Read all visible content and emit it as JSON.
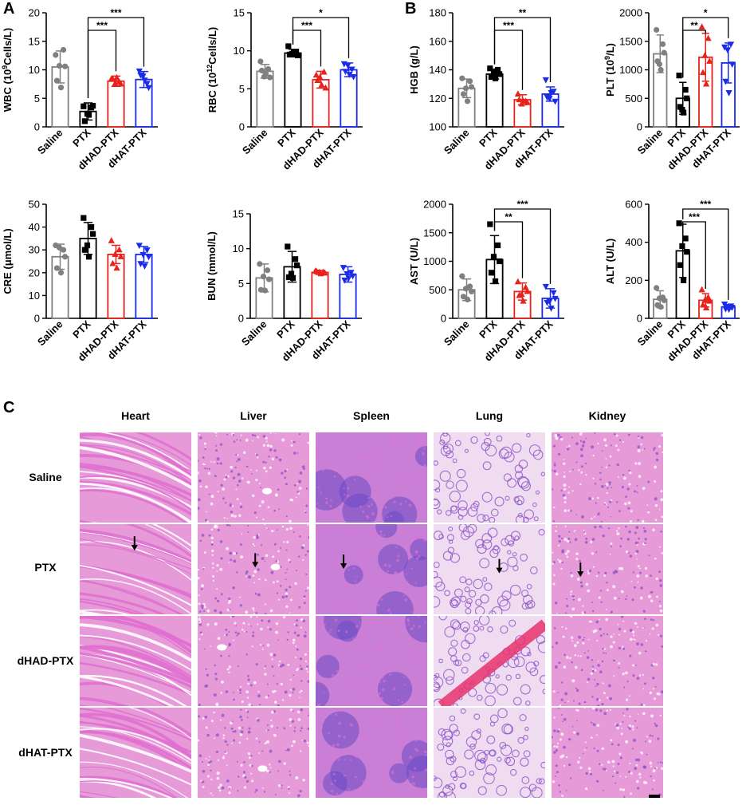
{
  "panel_letters": {
    "a": "A",
    "b": "B",
    "c": "C"
  },
  "colors": {
    "saline": "#808080",
    "ptx": "#000000",
    "dhad": "#e8231b",
    "dhat": "#1b2be8",
    "he_pink": "#e06fd0",
    "he_purple": "#8c52c8",
    "he_light": "#f3d6ef"
  },
  "chart_data": [
    {
      "id": "wbc",
      "type": "bar",
      "categories": [
        "Saline",
        "PTX",
        "dHAD-PTX",
        "dHAT-PTX"
      ],
      "values": [
        10.5,
        2.7,
        8.0,
        8.3
      ],
      "errors": [
        2.8,
        1.5,
        0.9,
        1.4
      ],
      "points": [
        [
          12.6,
          13.5,
          10.6,
          8.1,
          6.9,
          10.7
        ],
        [
          3.6,
          3.4,
          3.7,
          1.0,
          2.1,
          2.3
        ],
        [
          8.4,
          7.9,
          7.5,
          8.4,
          8.6,
          7.6
        ],
        [
          9.8,
          7.6,
          6.9,
          9.1,
          8.2,
          8.9
        ]
      ],
      "ylabel_main": "WBC (10",
      "ylabel_sup": "9",
      "ylabel_end": "Cells/L)",
      "ylim": [
        0,
        20
      ],
      "yticks": [
        "0",
        "5",
        "10",
        "15",
        "20"
      ],
      "brackets": [
        {
          "from": 1,
          "to": 2,
          "label": "***"
        },
        {
          "from": 1,
          "to": 3,
          "label": "***"
        }
      ]
    },
    {
      "id": "rbc",
      "type": "bar",
      "categories": [
        "Saline",
        "PTX",
        "dHAD-PTX",
        "dHAT-PTX"
      ],
      "values": [
        7.3,
        9.7,
        6.2,
        7.5
      ],
      "errors": [
        0.9,
        0.5,
        1.1,
        0.9
      ],
      "points": [
        [
          8.6,
          7.6,
          6.5,
          7.4,
          7.0,
          6.6
        ],
        [
          10.6,
          9.9,
          9.4,
          9.5,
          9.9,
          9.6
        ],
        [
          6.8,
          7.2,
          5.1,
          6.1,
          5.5,
          6.5
        ],
        [
          8.3,
          7.6,
          6.6,
          7.3,
          6.9,
          8.1
        ]
      ],
      "ylabel_main": "RBC (10",
      "ylabel_sup": "12",
      "ylabel_end": "Cells/L)",
      "ylim": [
        0,
        15
      ],
      "yticks": [
        "0",
        "5",
        "10",
        "15"
      ],
      "brackets": [
        {
          "from": 1,
          "to": 2,
          "label": "***"
        },
        {
          "from": 1,
          "to": 3,
          "label": "*"
        }
      ]
    },
    {
      "id": "hgb",
      "type": "bar",
      "categories": [
        "Saline",
        "PTX",
        "dHAD-PTX",
        "dHAT-PTX"
      ],
      "values": [
        127,
        137,
        119,
        123
      ],
      "errors": [
        6.5,
        3.5,
        3.5,
        5.0
      ],
      "points": [
        [
          134,
          132,
          128,
          123,
          118,
          127
        ],
        [
          141,
          140,
          137,
          135,
          134,
          138
        ],
        [
          123,
          118,
          117,
          119,
          118,
          116
        ],
        [
          133,
          125,
          118,
          121,
          124,
          120
        ]
      ],
      "ylabel_main": "HGB (g/L)",
      "ylabel_sup": "",
      "ylabel_end": "",
      "ylim": [
        100,
        180
      ],
      "yticks": [
        "100",
        "120",
        "140",
        "160",
        "180"
      ],
      "brackets": [
        {
          "from": 1,
          "to": 2,
          "label": "***"
        },
        {
          "from": 1,
          "to": 3,
          "label": "**"
        }
      ]
    },
    {
      "id": "plt",
      "type": "bar",
      "categories": [
        "Saline",
        "PTX",
        "dHAD-PTX",
        "dHAT-PTX"
      ],
      "values": [
        1280,
        500,
        1220,
        1120
      ],
      "errors": [
        330,
        280,
        420,
        350
      ],
      "points": [
        [
          1700,
          1450,
          1300,
          1150,
          1000,
          1100
        ],
        [
          900,
          650,
          500,
          350,
          250,
          300
        ],
        [
          1750,
          1550,
          1150,
          950,
          750,
          1250
        ],
        [
          1400,
          1450,
          1100,
          800,
          600,
          1350
        ]
      ],
      "ylabel_main": "PLT (10",
      "ylabel_sup": "9",
      "ylabel_end": "/L)",
      "ylim": [
        0,
        2000
      ],
      "yticks": [
        "0",
        "500",
        "1000",
        "1500",
        "2000"
      ],
      "brackets": [
        {
          "from": 1,
          "to": 2,
          "label": "**"
        },
        {
          "from": 1,
          "to": 3,
          "label": "*"
        }
      ]
    },
    {
      "id": "cre",
      "type": "bar",
      "categories": [
        "Saline",
        "PTX",
        "dHAD-PTX",
        "dHAT-PTX"
      ],
      "values": [
        27,
        35,
        28,
        28
      ],
      "errors": [
        5.5,
        7.0,
        4.0,
        3.5
      ],
      "points": [
        [
          32,
          30,
          27,
          22,
          20,
          31
        ],
        [
          44,
          40,
          37,
          30,
          27,
          32
        ],
        [
          34,
          30,
          27,
          24,
          22,
          28
        ],
        [
          32,
          30,
          27,
          24,
          23,
          28
        ]
      ],
      "ylabel_main": "CRE (μmol/L)",
      "ylabel_sup": "",
      "ylabel_end": "",
      "ylim": [
        0,
        50
      ],
      "yticks": [
        "0",
        "10",
        "20",
        "30",
        "40",
        "50"
      ],
      "brackets": []
    },
    {
      "id": "bun",
      "type": "bar",
      "categories": [
        "Saline",
        "PTX",
        "dHAD-PTX",
        "dHAT-PTX"
      ],
      "values": [
        5.8,
        7.4,
        6.6,
        6.3
      ],
      "errors": [
        2.0,
        2.2,
        0.3,
        1.1
      ],
      "points": [
        [
          7.8,
          6.9,
          5.6,
          4.1,
          4.0,
          6.0
        ],
        [
          10.3,
          8.5,
          7.6,
          5.9,
          5.8,
          6.4
        ],
        [
          6.8,
          6.6,
          6.5,
          6.7,
          6.4,
          6.6
        ],
        [
          7.3,
          6.6,
          6.1,
          5.5,
          5.8,
          6.4
        ]
      ],
      "ylabel_main": "BUN (mmol/L)",
      "ylabel_sup": "",
      "ylabel_end": "",
      "ylim": [
        0,
        15
      ],
      "yticks": [
        "0",
        "5",
        "10",
        "15"
      ],
      "brackets": []
    },
    {
      "id": "ast",
      "type": "bar",
      "categories": [
        "Saline",
        "PTX",
        "dHAD-PTX",
        "dHAT-PTX"
      ],
      "values": [
        500,
        1030,
        470,
        350
      ],
      "errors": [
        190,
        420,
        150,
        170
      ],
      "points": [
        [
          740,
          560,
          470,
          380,
          330,
          520
        ],
        [
          1650,
          1280,
          1000,
          800,
          650,
          1080
        ],
        [
          640,
          540,
          470,
          400,
          300,
          420
        ],
        [
          560,
          450,
          350,
          280,
          180,
          300
        ]
      ],
      "ylabel_main": "AST (U/L)",
      "ylabel_sup": "",
      "ylabel_end": "",
      "ylim": [
        0,
        2000
      ],
      "yticks": [
        "0",
        "500",
        "1000",
        "1500",
        "2000"
      ],
      "brackets": [
        {
          "from": 1,
          "to": 2,
          "label": "**"
        },
        {
          "from": 1,
          "to": 3,
          "label": "***"
        }
      ]
    },
    {
      "id": "alt",
      "type": "bar",
      "categories": [
        "Saline",
        "PTX",
        "dHAD-PTX",
        "dHAT-PTX"
      ],
      "values": [
        100,
        355,
        95,
        60
      ],
      "errors": [
        45,
        140,
        35,
        12
      ],
      "points": [
        [
          160,
          110,
          95,
          70,
          60,
          105
        ],
        [
          500,
          420,
          350,
          280,
          200,
          380
        ],
        [
          150,
          110,
          90,
          70,
          55,
          95
        ],
        [
          75,
          65,
          58,
          50,
          48,
          62
        ]
      ],
      "ylabel_main": "ALT (U/L)",
      "ylabel_sup": "",
      "ylabel_end": "",
      "ylim": [
        0,
        600
      ],
      "yticks": [
        "0",
        "200",
        "400",
        "600"
      ],
      "brackets": [
        {
          "from": 1,
          "to": 2,
          "label": "***"
        },
        {
          "from": 1,
          "to": 3,
          "label": "***"
        }
      ]
    }
  ],
  "histology": {
    "columns": [
      "Heart",
      "Liver",
      "Spleen",
      "Lung",
      "Kidney"
    ],
    "rows": [
      "Saline",
      "PTX",
      "dHAD-PTX",
      "dHAT-PTX"
    ],
    "arrows_note": "PTX row",
    "tiles": [
      [
        "heart-fiber-icon",
        "liver-tissue-icon",
        "spleen-tissue-icon",
        "lung-tissue-icon",
        "kidney-tissue-icon"
      ],
      [
        "heart-fiber-icon",
        "liver-tissue-icon",
        "spleen-tissue-icon",
        "lung-tissue-icon",
        "kidney-tissue-icon"
      ],
      [
        "heart-fiber-icon",
        "liver-tissue-icon",
        "spleen-tissue-icon",
        "lung-tissue-icon",
        "kidney-tissue-icon"
      ],
      [
        "heart-fiber-icon",
        "liver-tissue-icon",
        "spleen-tissue-icon",
        "lung-tissue-icon",
        "kidney-tissue-icon"
      ]
    ]
  }
}
